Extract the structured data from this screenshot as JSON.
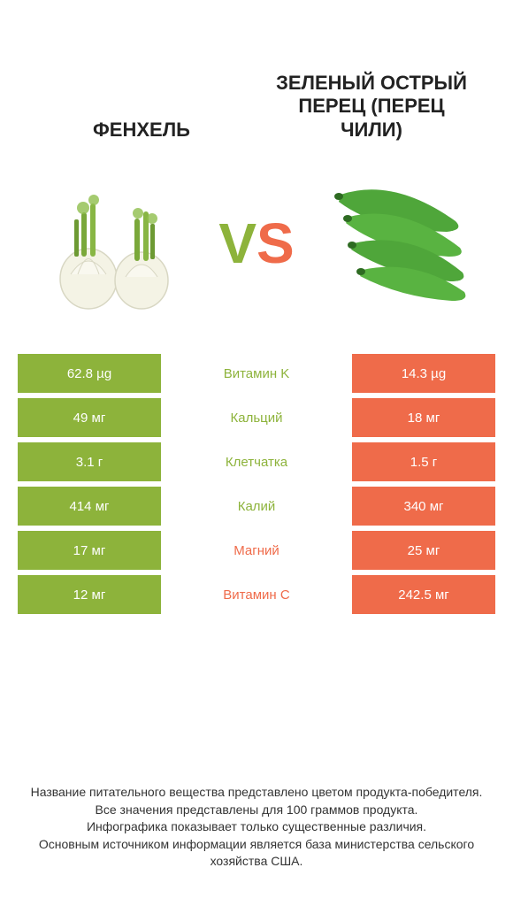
{
  "colors": {
    "left": "#8db33b",
    "right": "#ef6b4a",
    "text": "#222222"
  },
  "header": {
    "left_title": "ФЕНХЕЛЬ",
    "right_title": "ЗЕЛЕНЫЙ ОСТРЫЙ ПЕРЕЦ (ПЕРЕЦ ЧИЛИ)"
  },
  "vs": {
    "v": "V",
    "s": "S"
  },
  "table": {
    "rows": [
      {
        "left": "62.8 µg",
        "label": "Витамин K",
        "right": "14.3 µg",
        "winner": "left"
      },
      {
        "left": "49 мг",
        "label": "Кальций",
        "right": "18 мг",
        "winner": "left"
      },
      {
        "left": "3.1 г",
        "label": "Клетчатка",
        "right": "1.5 г",
        "winner": "left"
      },
      {
        "left": "414 мг",
        "label": "Калий",
        "right": "340 мг",
        "winner": "left"
      },
      {
        "left": "17 мг",
        "label": "Магний",
        "right": "25 мг",
        "winner": "right"
      },
      {
        "left": "12 мг",
        "label": "Витамин C",
        "right": "242.5 мг",
        "winner": "right"
      }
    ]
  },
  "footer": {
    "line1": "Название питательного вещества представлено цветом продукта-победителя.",
    "line2": "Все значения представлены для 100 граммов продукта.",
    "line3": "Инфографика показывает только существенные различия.",
    "line4": "Основным источником информации является база министерства сельского хозяйства США."
  }
}
